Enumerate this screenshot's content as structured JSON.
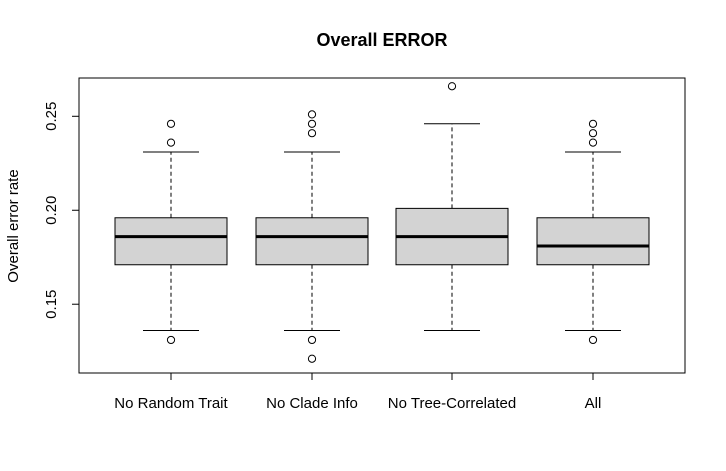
{
  "chart_data": {
    "type": "boxplot",
    "title": "Overall ERROR",
    "xlabel": "",
    "ylabel": "Overall error rate",
    "ylim": [
      0.115,
      0.27
    ],
    "yticks": [
      0.15,
      0.2,
      0.25
    ],
    "ytick_labels": [
      "0.15",
      "0.20",
      "0.25"
    ],
    "grid": false,
    "box_fill": "#d3d3d3",
    "categories": [
      "No Random Trait",
      "No Clade Info",
      "No Tree-Correlated",
      "All"
    ],
    "boxes": [
      {
        "name": "No Random Trait",
        "whisker_low": 0.136,
        "q1": 0.171,
        "median": 0.186,
        "q3": 0.196,
        "whisker_high": 0.231,
        "outliers": [
          0.131,
          0.236,
          0.246
        ]
      },
      {
        "name": "No Clade Info",
        "whisker_low": 0.136,
        "q1": 0.171,
        "median": 0.186,
        "q3": 0.196,
        "whisker_high": 0.231,
        "outliers": [
          0.121,
          0.131,
          0.241,
          0.246,
          0.251
        ]
      },
      {
        "name": "No Tree-Correlated",
        "whisker_low": 0.136,
        "q1": 0.171,
        "median": 0.186,
        "q3": 0.201,
        "whisker_high": 0.246,
        "outliers": [
          0.266
        ]
      },
      {
        "name": "All",
        "whisker_low": 0.136,
        "q1": 0.171,
        "median": 0.181,
        "q3": 0.196,
        "whisker_high": 0.231,
        "outliers": [
          0.131,
          0.236,
          0.241,
          0.246
        ]
      }
    ]
  }
}
